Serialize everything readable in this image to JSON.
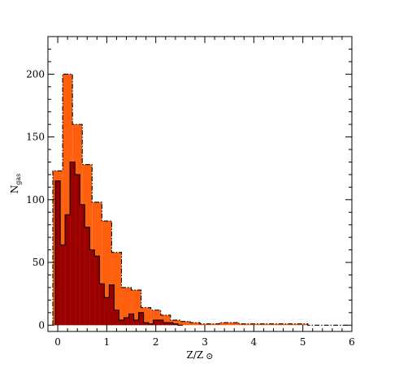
{
  "chart_data": {
    "type": "bar",
    "xlabel_main": "Z/Z",
    "xlabel_symbol": "⊙",
    "ylabel_main": "N",
    "ylabel_sub": "gas",
    "xlim": [
      -0.2,
      6.0
    ],
    "ylim": [
      -5,
      230
    ],
    "x_ticks": [
      0,
      1,
      2,
      3,
      4,
      5,
      6
    ],
    "y_ticks": [
      0,
      50,
      100,
      150,
      200
    ],
    "bin_width": 0.2,
    "series": [
      {
        "key": "all",
        "color": "#FF6010",
        "line_style": "dash-dot",
        "bins_left": [
          -0.1,
          0.1,
          0.3,
          0.5,
          0.7,
          0.9,
          1.1,
          1.3,
          1.5,
          1.7,
          1.9,
          2.1,
          2.3,
          2.5,
          2.7,
          2.9,
          3.1,
          3.3,
          3.5,
          3.7,
          3.9,
          4.1,
          4.3,
          4.5,
          4.7,
          4.9,
          5.1,
          5.3,
          5.5,
          5.7
        ],
        "values": [
          123,
          200,
          160,
          128,
          98,
          83,
          58,
          30,
          28,
          14,
          12,
          8,
          4,
          3,
          2,
          1,
          1,
          2,
          2,
          1,
          1,
          1,
          1,
          1,
          1,
          1,
          0,
          0,
          0,
          0
        ]
      },
      {
        "key": "subset",
        "color": "#9B0000",
        "line_style": "solid",
        "bins_left": [
          -0.05,
          0.05,
          0.15,
          0.25,
          0.35,
          0.45,
          0.55,
          0.65,
          0.75,
          0.85,
          0.95,
          1.05,
          1.15,
          1.25,
          1.35,
          1.45,
          1.55,
          1.65,
          1.75,
          1.85,
          1.95,
          2.05,
          2.15,
          2.25,
          2.35,
          2.45
        ],
        "bin_width": 0.1,
        "values": [
          115,
          64,
          88,
          130,
          120,
          96,
          78,
          60,
          55,
          33,
          22,
          32,
          12,
          4,
          6,
          9,
          4,
          10,
          2,
          1,
          4,
          4,
          2,
          2,
          1,
          0
        ]
      }
    ]
  }
}
